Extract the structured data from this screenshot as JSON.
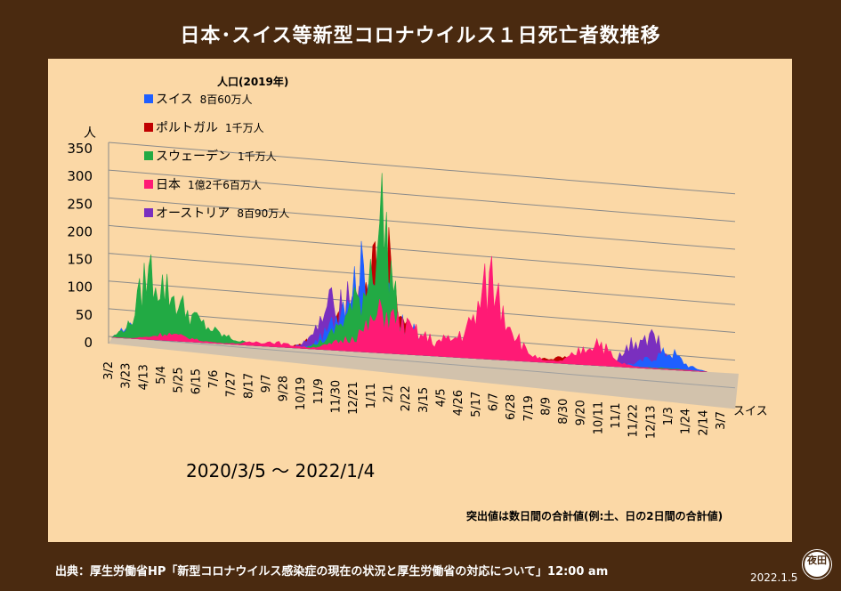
{
  "page": {
    "title": "日本･スイス等新型コロナウイルス１日死亡者数推移",
    "source": "出典：厚生労働省HP「新型コロナウイルス感染症の現在の状況と厚生労働省の対応について」12:00 am",
    "date": "2022.1.5",
    "seal": "夜田"
  },
  "chart_data": {
    "type": "area",
    "title": "日本･スイス等新型コロナウイルス１日死亡者数推移",
    "ylabel": "人",
    "ylim": [
      0,
      350
    ],
    "yticks": [
      "0",
      "50",
      "100",
      "150",
      "200",
      "250",
      "300",
      "350"
    ],
    "xticks": [
      "3/2",
      "3/23",
      "4/13",
      "5/4",
      "5/25",
      "6/15",
      "7/6",
      "7/27",
      "8/17",
      "9/7",
      "9/28",
      "10/19",
      "11/9",
      "11/30",
      "12/21",
      "1/11",
      "2/1",
      "2/22",
      "3/15",
      "4/5",
      "4/26",
      "5/17",
      "6/7",
      "6/28",
      "7/19",
      "8/9",
      "8/30",
      "9/20",
      "10/11",
      "11/1",
      "11/22",
      "12/13",
      "1/3",
      "1/24",
      "2/14",
      "3/7"
    ],
    "depth_axis_label": "スイス",
    "period_label": "2020/3/5 ～ 2022/1/4",
    "note": "突出値は数日間の合計値(例:土、日の2日間の合計値)",
    "legend_header": "人口(2019年)",
    "grid": true,
    "legend_position": "top-left",
    "series": [
      {
        "name": "スイス",
        "population": "8百60万人",
        "color": "#1f5fff",
        "values": [
          0,
          30,
          60,
          45,
          30,
          15,
          8,
          3,
          2,
          1,
          2,
          5,
          40,
          130,
          180,
          140,
          70,
          40,
          10,
          3,
          2,
          2,
          1,
          1,
          1,
          2,
          2,
          3,
          5,
          8,
          25,
          40,
          10,
          0
        ]
      },
      {
        "name": "ポルトガル",
        "population": "1千万人",
        "color": "#c00000",
        "values": [
          0,
          10,
          25,
          15,
          10,
          6,
          5,
          4,
          3,
          3,
          2,
          20,
          60,
          75,
          120,
          255,
          90,
          20,
          5,
          3,
          2,
          1,
          1,
          2,
          8,
          12,
          10,
          8,
          3,
          2,
          3,
          5,
          2,
          0
        ]
      },
      {
        "name": "スウェーデン",
        "population": "1千万人",
        "color": "#22aa44",
        "values": [
          0,
          30,
          150,
          110,
          70,
          40,
          20,
          8,
          3,
          2,
          1,
          5,
          25,
          75,
          130,
          300,
          45,
          12,
          20,
          15,
          8,
          3,
          2,
          1,
          1,
          2,
          3,
          2,
          1,
          1,
          2,
          3,
          1,
          0
        ]
      },
      {
        "name": "日本",
        "population": "1億2千6百万人",
        "color": "#ff1a75",
        "values": [
          0,
          0,
          5,
          15,
          10,
          3,
          1,
          2,
          8,
          10,
          5,
          2,
          10,
          25,
          45,
          90,
          65,
          45,
          30,
          40,
          75,
          180,
          90,
          20,
          3,
          5,
          30,
          55,
          10,
          2,
          1,
          1,
          1,
          0
        ]
      },
      {
        "name": "オーストリア",
        "population": "8百90万人",
        "color": "#7a2fbf",
        "values": [
          0,
          3,
          8,
          5,
          2,
          1,
          1,
          1,
          1,
          1,
          2,
          20,
          90,
          120,
          95,
          60,
          20,
          10,
          15,
          20,
          10,
          3,
          1,
          1,
          1,
          1,
          1,
          2,
          15,
          60,
          75,
          20,
          5,
          0
        ]
      }
    ]
  }
}
